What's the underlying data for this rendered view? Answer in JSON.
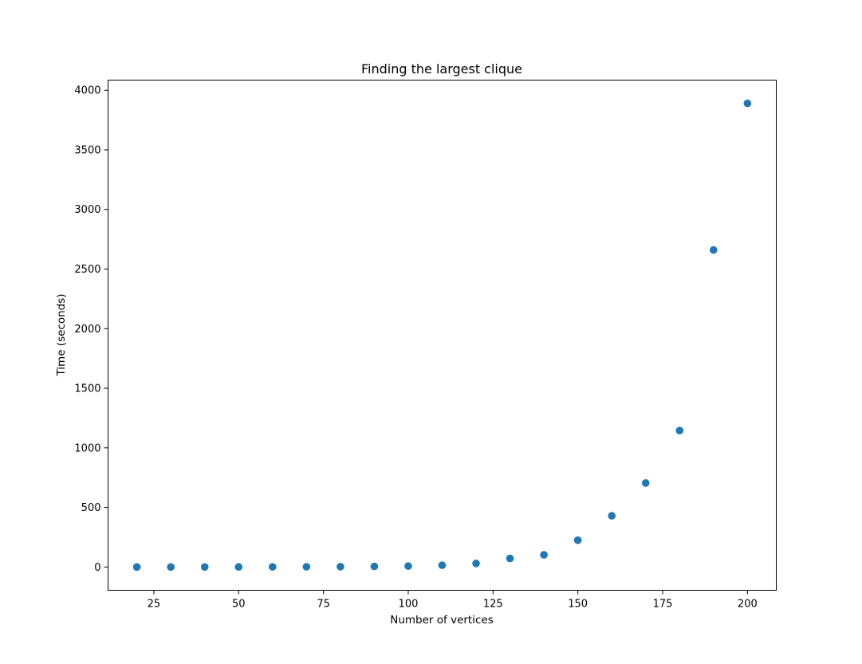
{
  "chart_data": {
    "type": "scatter",
    "title": "Finding the largest clique",
    "xlabel": "Number of vertices",
    "ylabel": "Time (seconds)",
    "xlim": [
      11.5,
      208.5
    ],
    "ylim": [
      -195,
      4085
    ],
    "x_ticks": [
      25,
      50,
      75,
      100,
      125,
      150,
      175,
      200
    ],
    "y_ticks": [
      0,
      500,
      1000,
      1500,
      2000,
      2500,
      3000,
      3500,
      4000
    ],
    "grid": false,
    "marker_color": "#1f77b4",
    "series": [
      {
        "x": [
          20,
          30,
          40,
          50,
          60,
          70,
          80,
          90,
          100,
          110,
          120,
          130,
          140,
          150,
          160,
          170,
          180,
          190,
          200
        ],
        "y": [
          0.1,
          0.2,
          0.4,
          0.7,
          1.2,
          2,
          3,
          5,
          8,
          15,
          30,
          72,
          102,
          225,
          430,
          705,
          1145,
          2660,
          3890
        ]
      }
    ]
  }
}
